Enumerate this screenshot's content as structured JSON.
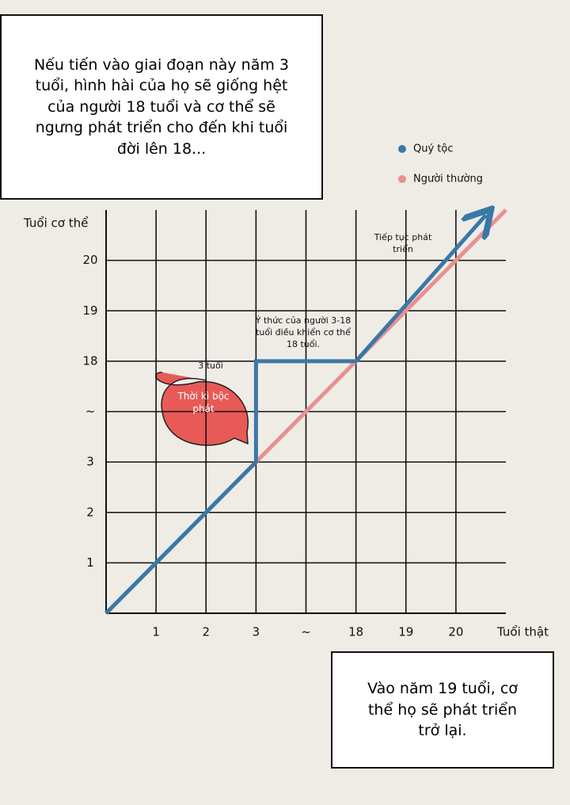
{
  "caption_top": "Nếu tiến vào giai đoạn này năm 3 tuổi, hình hài của họ sẽ giống hệt của người 18 tuổi và cơ thể sẽ ngưng phát triển cho đến khi tuổi đời lên 18...",
  "caption_bottom": "Vào năm 19 tuổi, cơ thể họ sẽ phát triển trở lại.",
  "chart_data": {
    "type": "line",
    "y_label": "Tuổi cơ thể",
    "x_label": "Tuổi thật",
    "xlim": [
      0,
      8
    ],
    "ylim": [
      0,
      8
    ],
    "xticks": [
      1,
      2,
      3,
      {
        "value": 4,
        "label": "~"
      },
      {
        "value": 5,
        "label": "18"
      },
      {
        "value": 6,
        "label": "19"
      },
      {
        "value": 7,
        "label": "20"
      }
    ],
    "yticks": [
      1,
      2,
      3,
      {
        "value": 4,
        "label": "~"
      },
      {
        "value": 5,
        "label": "18"
      },
      {
        "value": 6,
        "label": "19"
      },
      {
        "value": 7,
        "label": "20"
      }
    ],
    "grid": true,
    "series": [
      {
        "name": "Quý tộc",
        "color": "#3a78a8",
        "x": [
          0,
          3,
          3,
          5,
          7.6
        ],
        "values": [
          0,
          3,
          5,
          5,
          7.9
        ]
      },
      {
        "name": "Người thường",
        "color": "#e89090",
        "x": [
          0,
          8
        ],
        "values": [
          0,
          8
        ]
      }
    ],
    "annotations": [
      "3 tuổi",
      "Thời kì bộc phát",
      "Ý thức của người 3-18 tuổi điều khiển cơ thể 18 tuổi.",
      "Tiếp tục phát triển"
    ]
  }
}
